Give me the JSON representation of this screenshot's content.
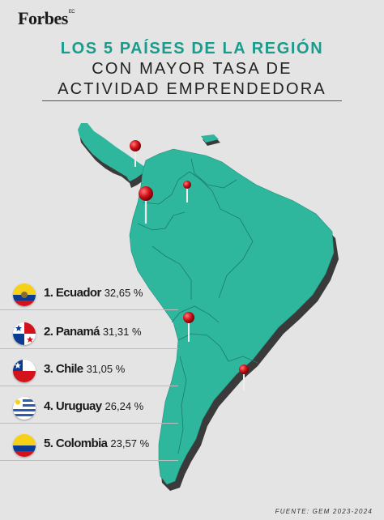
{
  "brand": {
    "logo_text": "Forbes",
    "logo_suffix": "EC"
  },
  "title": {
    "line1": "LOS 5 PAÍSES DE LA REGIÓN",
    "line2": "CON MAYOR TASA DE",
    "line3": "ACTIVIDAD EMPRENDEDORA"
  },
  "colors": {
    "accent": "#1a9c8d",
    "land": "#2fb79e",
    "land_side": "#3a3a3a",
    "pin": "#d3121c"
  },
  "ranking": [
    {
      "label": "1. Ecuador",
      "value": "32,65 %",
      "flag": "ecuador-flag"
    },
    {
      "label": "2. Panamá",
      "value": "31,31 %",
      "flag": "panama-flag"
    },
    {
      "label": "3. Chile",
      "value": "31,05 %",
      "flag": "chile-flag"
    },
    {
      "label": "4. Uruguay",
      "value": "26,24 %",
      "flag": "uruguay-flag"
    },
    {
      "label": "5. Colombia",
      "value": "23,57 %",
      "flag": "colombia-flag"
    }
  ],
  "source": "FUENTE: GEM 2023-2024"
}
